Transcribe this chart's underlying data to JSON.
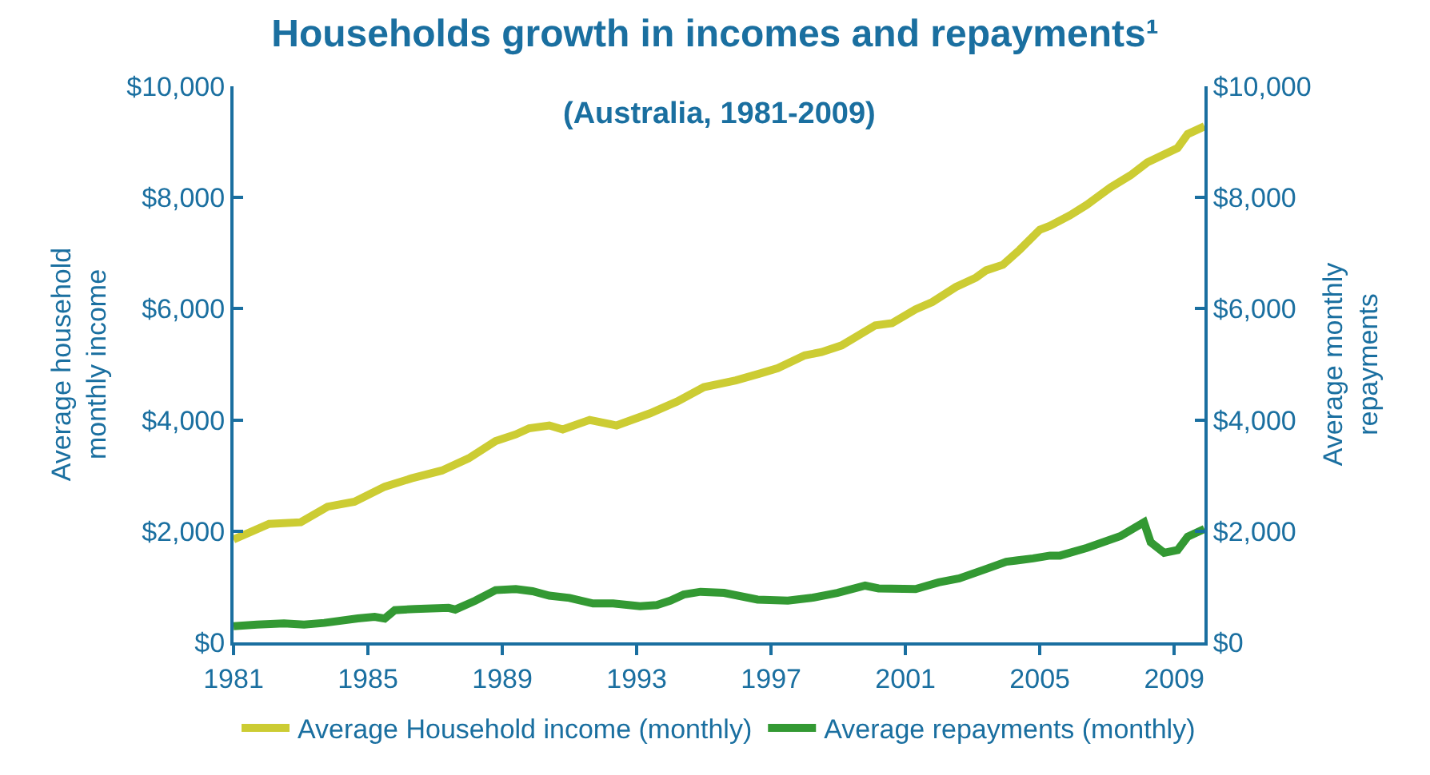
{
  "chart_data": {
    "type": "line",
    "title": "Households growth in incomes and repayments¹",
    "subtitle": "(Australia, 1981-2009)",
    "ylabel": "Average household monthly income",
    "y2label": "Average monthly repayments",
    "xlim": [
      1981,
      2009.9
    ],
    "xticks": [
      1981,
      1985,
      1989,
      1993,
      1997,
      2001,
      2005,
      2009
    ],
    "ylim": [
      0,
      10000
    ],
    "yticks": [
      {
        "value": 0,
        "label": "$0"
      },
      {
        "value": 2000,
        "label": "$2,000"
      },
      {
        "value": 4000,
        "label": "$4,000"
      },
      {
        "value": 6000,
        "label": "$6,000"
      },
      {
        "value": 8000,
        "label": "$8,000"
      },
      {
        "value": 10000,
        "label": "$10,000"
      }
    ],
    "y2lim": [
      0,
      10000
    ],
    "y2ticks": [
      {
        "value": 0,
        "label": "$0"
      },
      {
        "value": 2000,
        "label": "$2,000"
      },
      {
        "value": 4000,
        "label": "$4,000"
      },
      {
        "value": 6000,
        "label": "$6,000"
      },
      {
        "value": 8000,
        "label": "$8,000"
      },
      {
        "value": 10000,
        "label": "$10,000"
      }
    ],
    "legend": "bottom",
    "grid": false,
    "marker": "none",
    "line_style": "solid",
    "series": [
      {
        "name": "Average Household income (monthly)",
        "color": "#cccc33",
        "x": [
          1981,
          1982.06,
          1983.0,
          1983.8,
          1984.6,
          1985.5,
          1986.3,
          1987.2,
          1988.0,
          1988.8,
          1989.4,
          1989.8,
          1990.4,
          1990.8,
          1991.6,
          1992.4,
          1993.4,
          1994.2,
          1995.0,
          1995.95,
          1996.7,
          1997.2,
          1998.0,
          1998.5,
          1999.1,
          2000.1,
          2000.6,
          2001.3,
          2001.8,
          2002.5,
          2003.1,
          2003.4,
          2003.9,
          2004.4,
          2005.0,
          2005.3,
          2005.9,
          2006.4,
          2007.1,
          2007.7,
          2008.2,
          2009.1,
          2009.4,
          2009.9
        ],
        "values": [
          1850,
          2130,
          2160,
          2440,
          2530,
          2800,
          2950,
          3090,
          3310,
          3620,
          3740,
          3850,
          3900,
          3830,
          4000,
          3900,
          4120,
          4330,
          4590,
          4710,
          4840,
          4930,
          5160,
          5220,
          5340,
          5700,
          5740,
          5990,
          6120,
          6390,
          6560,
          6690,
          6790,
          7060,
          7420,
          7490,
          7680,
          7870,
          8180,
          8400,
          8630,
          8890,
          9140,
          9280
        ]
      },
      {
        "name": "Average repayments (monthly)",
        "color": "#339933",
        "axis": "y2",
        "x": [
          1981,
          1981.7,
          1982.5,
          1983.1,
          1983.7,
          1984.7,
          1985.2,
          1985.5,
          1985.8,
          1986.4,
          1987.4,
          1987.6,
          1988.2,
          1988.8,
          1989.4,
          1989.9,
          1990.4,
          1991.0,
          1991.7,
          1992.3,
          1993.1,
          1993.6,
          1994.0,
          1994.4,
          1994.9,
          1995.6,
          1996.6,
          1997.5,
          1998.2,
          1998.97,
          1999.8,
          2000.2,
          2001.3,
          2001.99,
          2002.6,
          2003.4,
          2004.0,
          2004.8,
          2005.3,
          2005.6,
          2006.4,
          2007.4,
          2008.1,
          2008.3,
          2008.7,
          2009.1,
          2009.4,
          2009.9
        ],
        "values": [
          290,
          320,
          340,
          320,
          350,
          430,
          460,
          430,
          580,
          600,
          620,
          590,
          750,
          940,
          960,
          920,
          840,
          800,
          700,
          700,
          650,
          670,
          750,
          860,
          910,
          890,
          770,
          750,
          800,
          890,
          1020,
          970,
          960,
          1080,
          1150,
          1320,
          1450,
          1510,
          1560,
          1560,
          1700,
          1910,
          2160,
          1800,
          1610,
          1660,
          1900,
          2040
        ]
      }
    ]
  }
}
